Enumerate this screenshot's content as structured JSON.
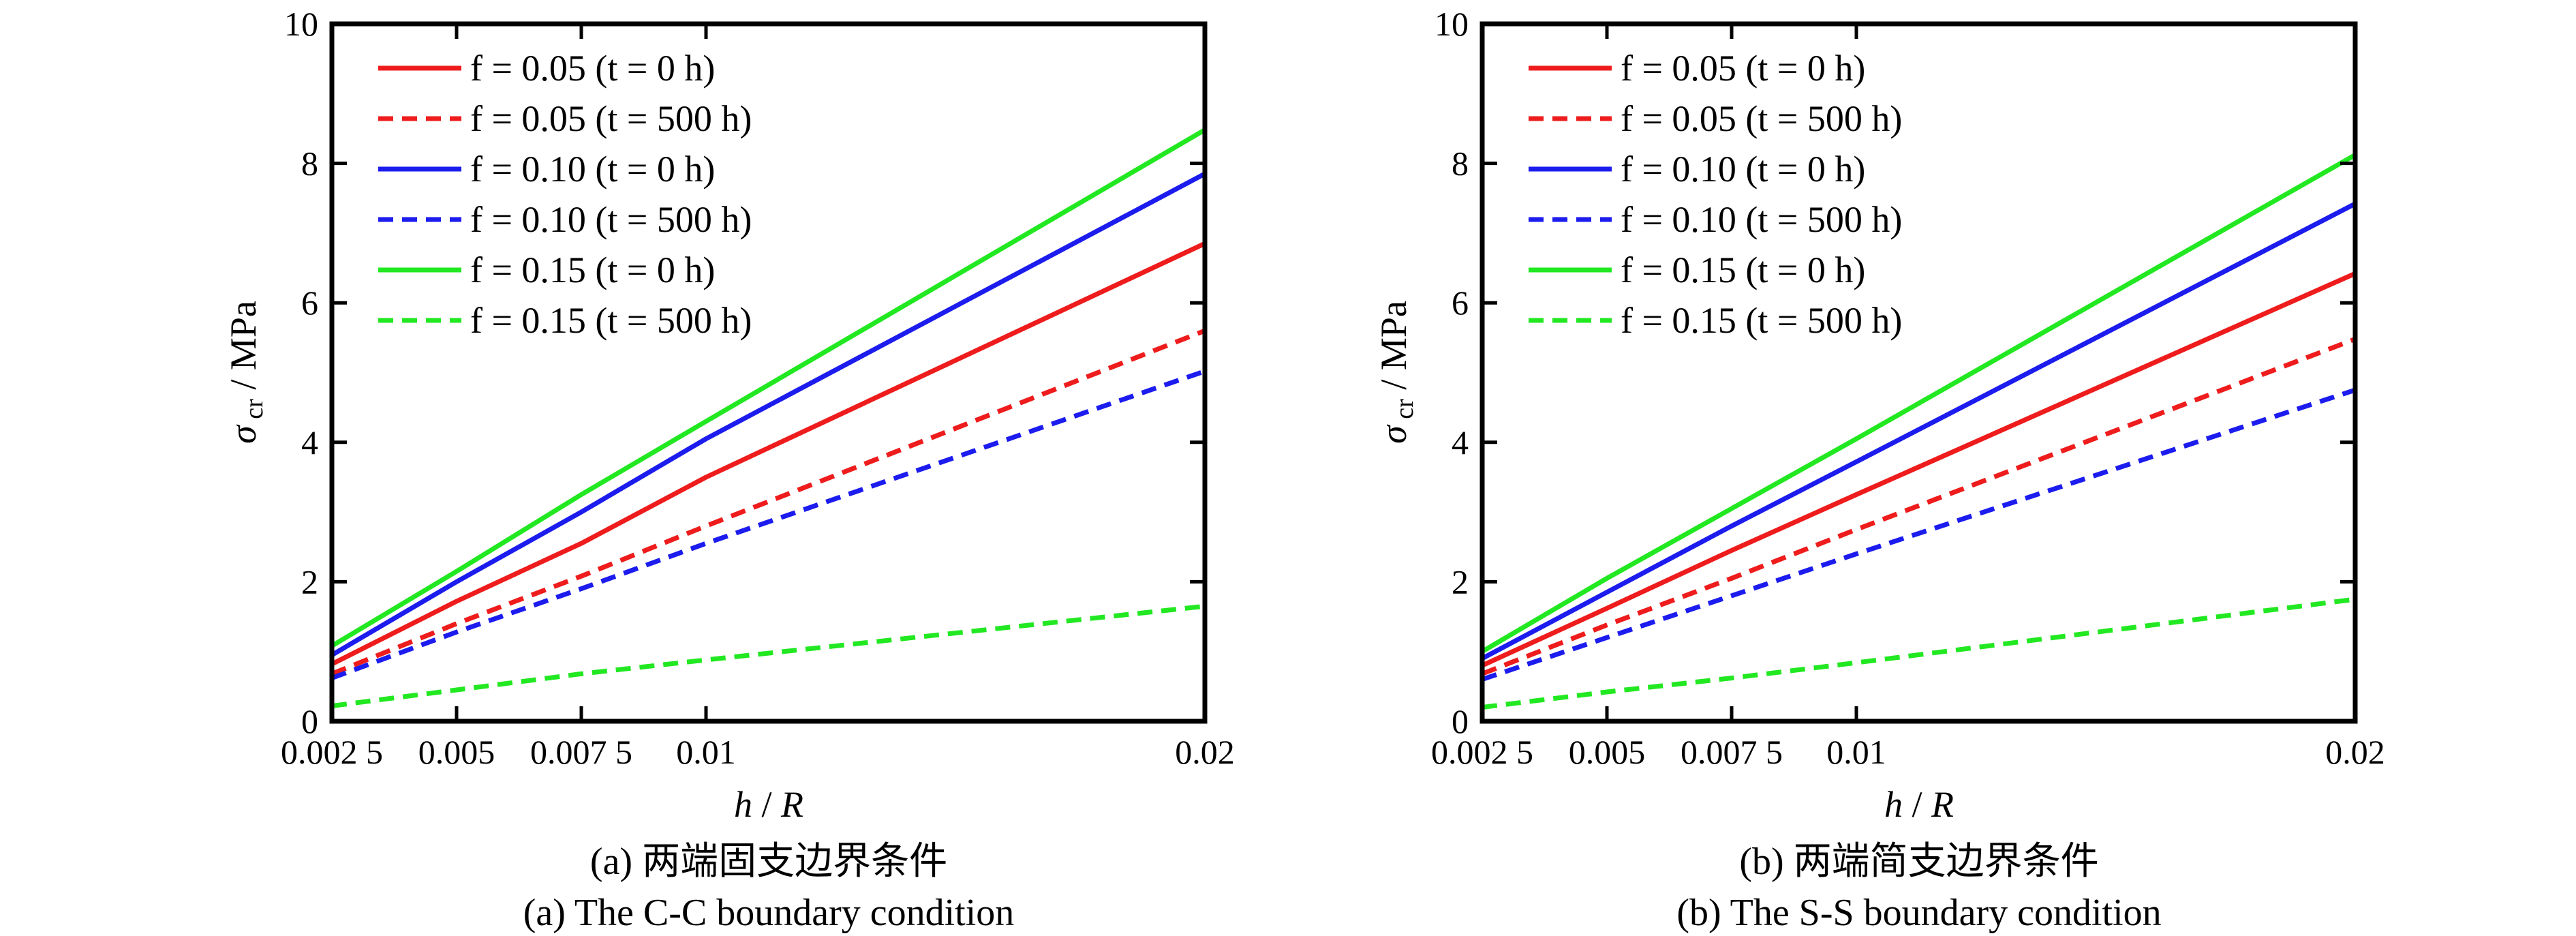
{
  "colors": {
    "red": "#ee1c1c",
    "blue": "#1c1cee",
    "green": "#22e822",
    "axis": "#000000"
  },
  "chart_data": [
    {
      "id": "cc",
      "type": "line",
      "xlabel": "h / R",
      "ylabel": "σ_cr / MPa",
      "xlim": [
        0.0025,
        0.02
      ],
      "ylim": [
        0,
        10
      ],
      "xticks": [
        0.0025,
        0.005,
        0.0075,
        0.01,
        0.02
      ],
      "xtick_labels": [
        "0.002 5",
        "0.005",
        "0.007 5",
        "0.01",
        "0.02"
      ],
      "yticks": [
        0,
        2,
        4,
        6,
        8,
        10
      ],
      "ytick_labels": [
        "0",
        "2",
        "4",
        "6",
        "8",
        "10"
      ],
      "legend_position": "top-left",
      "grid": false,
      "caption_cn": "(a) 两端固支边界条件",
      "caption_en": "(a) The C-C boundary condition",
      "series": [
        {
          "name": "f = 0.05 (t = 0 h)",
          "color": "red",
          "dash": false,
          "x": [
            0.0025,
            0.005,
            0.0075,
            0.01,
            0.02
          ],
          "y": [
            0.82,
            1.72,
            2.55,
            3.5,
            6.85
          ]
        },
        {
          "name": "f = 0.05 (t = 500 h)",
          "color": "red",
          "dash": true,
          "x": [
            0.0025,
            0.005,
            0.0075,
            0.01,
            0.02
          ],
          "y": [
            0.68,
            1.4,
            2.08,
            2.8,
            5.6
          ]
        },
        {
          "name": "f = 0.10 (t = 0 h)",
          "color": "blue",
          "dash": false,
          "x": [
            0.0025,
            0.005,
            0.0075,
            0.01,
            0.02
          ],
          "y": [
            0.95,
            2.0,
            3.0,
            4.05,
            7.85
          ]
        },
        {
          "name": "f = 0.10 (t = 500 h)",
          "color": "blue",
          "dash": true,
          "x": [
            0.0025,
            0.005,
            0.0075,
            0.01,
            0.02
          ],
          "y": [
            0.62,
            1.28,
            1.9,
            2.55,
            5.02
          ]
        },
        {
          "name": "f = 0.15 (t = 0 h)",
          "color": "green",
          "dash": false,
          "x": [
            0.0025,
            0.005,
            0.0075,
            0.01,
            0.02
          ],
          "y": [
            1.08,
            2.15,
            3.25,
            4.3,
            8.48
          ]
        },
        {
          "name": "f = 0.15 (t = 500 h)",
          "color": "green",
          "dash": true,
          "x": [
            0.0025,
            0.005,
            0.0075,
            0.01,
            0.02
          ],
          "y": [
            0.22,
            0.45,
            0.68,
            0.88,
            1.65
          ]
        }
      ]
    },
    {
      "id": "ss",
      "type": "line",
      "xlabel": "h / R",
      "ylabel": "σ_cr / MPa",
      "xlim": [
        0.0025,
        0.02
      ],
      "ylim": [
        0,
        10
      ],
      "xticks": [
        0.0025,
        0.005,
        0.0075,
        0.01,
        0.02
      ],
      "xtick_labels": [
        "0.002 5",
        "0.005",
        "0.007 5",
        "0.01",
        "0.02"
      ],
      "yticks": [
        0,
        2,
        4,
        6,
        8,
        10
      ],
      "ytick_labels": [
        "0",
        "2",
        "4",
        "6",
        "8",
        "10"
      ],
      "legend_position": "top-left",
      "grid": false,
      "caption_cn": "(b) 两端简支边界条件",
      "caption_en": "(b) The S-S boundary condition",
      "series": [
        {
          "name": "f = 0.05 (t = 0 h)",
          "color": "red",
          "dash": false,
          "x": [
            0.0025,
            0.005,
            0.0075,
            0.01,
            0.02
          ],
          "y": [
            0.8,
            1.62,
            2.45,
            3.25,
            6.42
          ]
        },
        {
          "name": "f = 0.05 (t = 500 h)",
          "color": "red",
          "dash": true,
          "x": [
            0.0025,
            0.005,
            0.0075,
            0.01,
            0.02
          ],
          "y": [
            0.68,
            1.38,
            2.05,
            2.75,
            5.48
          ]
        },
        {
          "name": "f = 0.10 (t = 0 h)",
          "color": "blue",
          "dash": false,
          "x": [
            0.0025,
            0.005,
            0.0075,
            0.01,
            0.02
          ],
          "y": [
            0.9,
            1.85,
            2.8,
            3.72,
            7.42
          ]
        },
        {
          "name": "f = 0.10 (t = 500 h)",
          "color": "blue",
          "dash": true,
          "x": [
            0.0025,
            0.005,
            0.0075,
            0.01,
            0.02
          ],
          "y": [
            0.6,
            1.2,
            1.8,
            2.4,
            4.75
          ]
        },
        {
          "name": "f = 0.15 (t = 0 h)",
          "color": "green",
          "dash": false,
          "x": [
            0.0025,
            0.005,
            0.0075,
            0.01,
            0.02
          ],
          "y": [
            1.0,
            2.05,
            3.05,
            4.05,
            8.12
          ]
        },
        {
          "name": "f = 0.15 (t = 500 h)",
          "color": "green",
          "dash": true,
          "x": [
            0.0025,
            0.005,
            0.0075,
            0.01,
            0.02
          ],
          "y": [
            0.2,
            0.42,
            0.62,
            0.84,
            1.75
          ]
        }
      ]
    }
  ]
}
